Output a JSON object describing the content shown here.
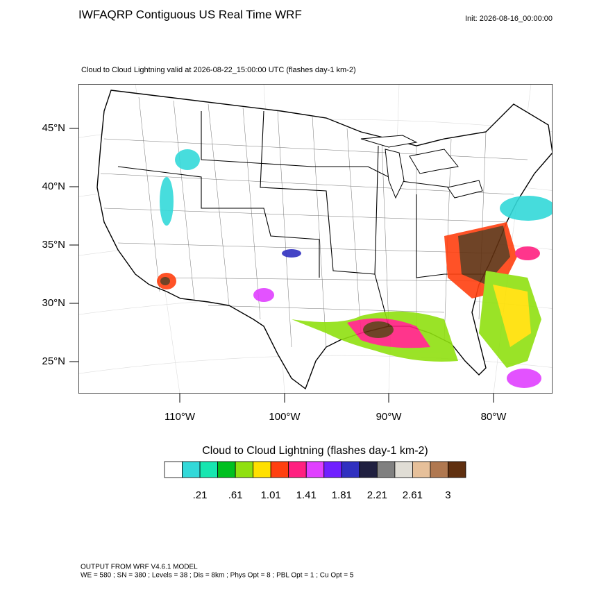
{
  "header": {
    "title": "IWFAQRP Contiguous US Real Time WRF",
    "init": "Init: 2026-08-16_00:00:00"
  },
  "map": {
    "subtitle": "Cloud to Cloud Lightning valid at 2026-08-22_15:00:00 UTC   (flashes day-1 km-2)",
    "lat_labels": [
      "45°N",
      "40°N",
      "35°N",
      "30°N",
      "25°N"
    ],
    "lon_labels": [
      "110°W",
      "100°W",
      "90°W",
      "80°W"
    ]
  },
  "colorbar": {
    "title": "Cloud to Cloud Lightning  (flashes day-1 km-2)",
    "colors": [
      "#ffffff",
      "#33d9d9",
      "#17e6b0",
      "#00c020",
      "#90e010",
      "#ffe000",
      "#ff4010",
      "#ff2080",
      "#e040ff",
      "#7020ff",
      "#3030c0",
      "#202040",
      "#808080",
      "#e0ddd5",
      "#e6c09a",
      "#b07850",
      "#603010"
    ],
    "labels": [
      {
        "value": 0.21,
        "label": ".21"
      },
      {
        "value": 0.61,
        "label": ".61"
      },
      1.01,
      1.41,
      1.81,
      2.21,
      2.61,
      3
    ]
  },
  "footer": {
    "lines": [
      "OUTPUT FROM WRF V4.6.1 MODEL",
      "WE = 580 ; SN = 380 ; Levels = 38 ; Dis = 8km ; Phys Opt = 8 ; PBL Opt = 1 ; Cu Opt = 5"
    ]
  }
}
